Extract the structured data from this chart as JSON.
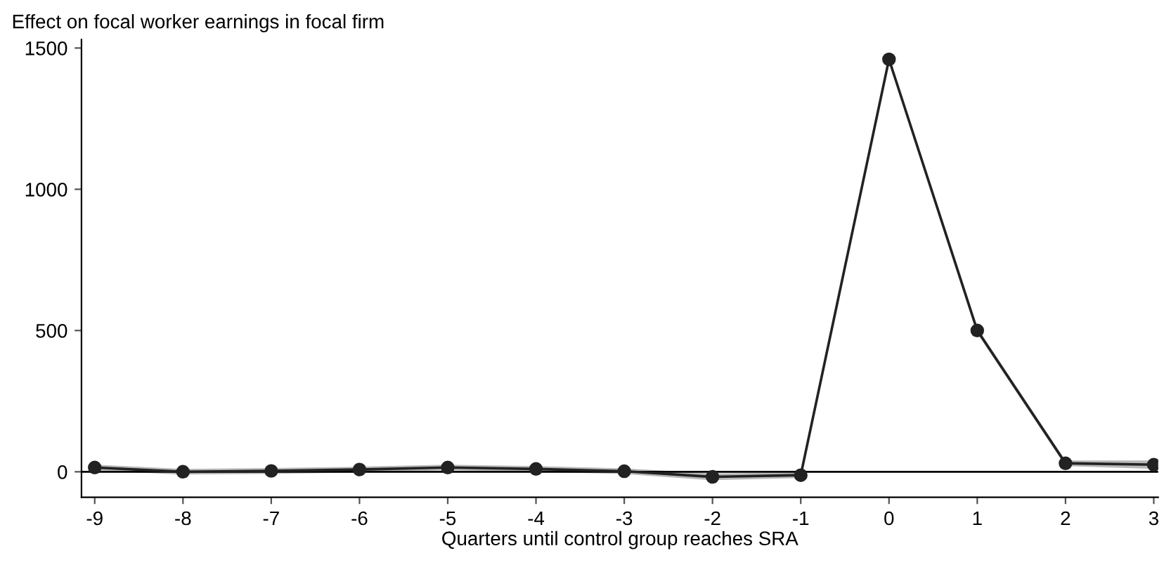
{
  "chart_data": {
    "type": "line",
    "ylabel": "Effect on focal worker earnings in focal firm",
    "xlabel": "Quarters until control group reaches SRA",
    "x": [
      -9,
      -8,
      -7,
      -6,
      -5,
      -4,
      -3,
      -2,
      -1,
      0,
      1,
      2,
      3
    ],
    "series": [
      {
        "color": "#222222",
        "values": [
          15,
          0,
          3,
          8,
          15,
          10,
          2,
          -18,
          -12,
          1460,
          500,
          30,
          25
        ],
        "lower": [
          5,
          -10,
          -7,
          -2,
          5,
          0,
          -8,
          -30,
          -22,
          1450,
          490,
          20,
          10
        ],
        "upper": [
          25,
          10,
          13,
          18,
          25,
          20,
          12,
          -6,
          -2,
          1470,
          510,
          40,
          40
        ]
      }
    ],
    "xlim": [
      -9.15,
      3.05
    ],
    "ylim": [
      -90,
      1530
    ],
    "xticks": [
      -9,
      -8,
      -7,
      -6,
      -5,
      -4,
      -3,
      -2,
      -1,
      0,
      1,
      2,
      3
    ],
    "yticks": [
      0,
      500,
      1000,
      1500
    ],
    "ref_lines": [
      {
        "axis": "y",
        "value": 0,
        "color": "#000000"
      }
    ],
    "marker": "circle",
    "line_style": "solid",
    "grid": false,
    "legend": false
  }
}
